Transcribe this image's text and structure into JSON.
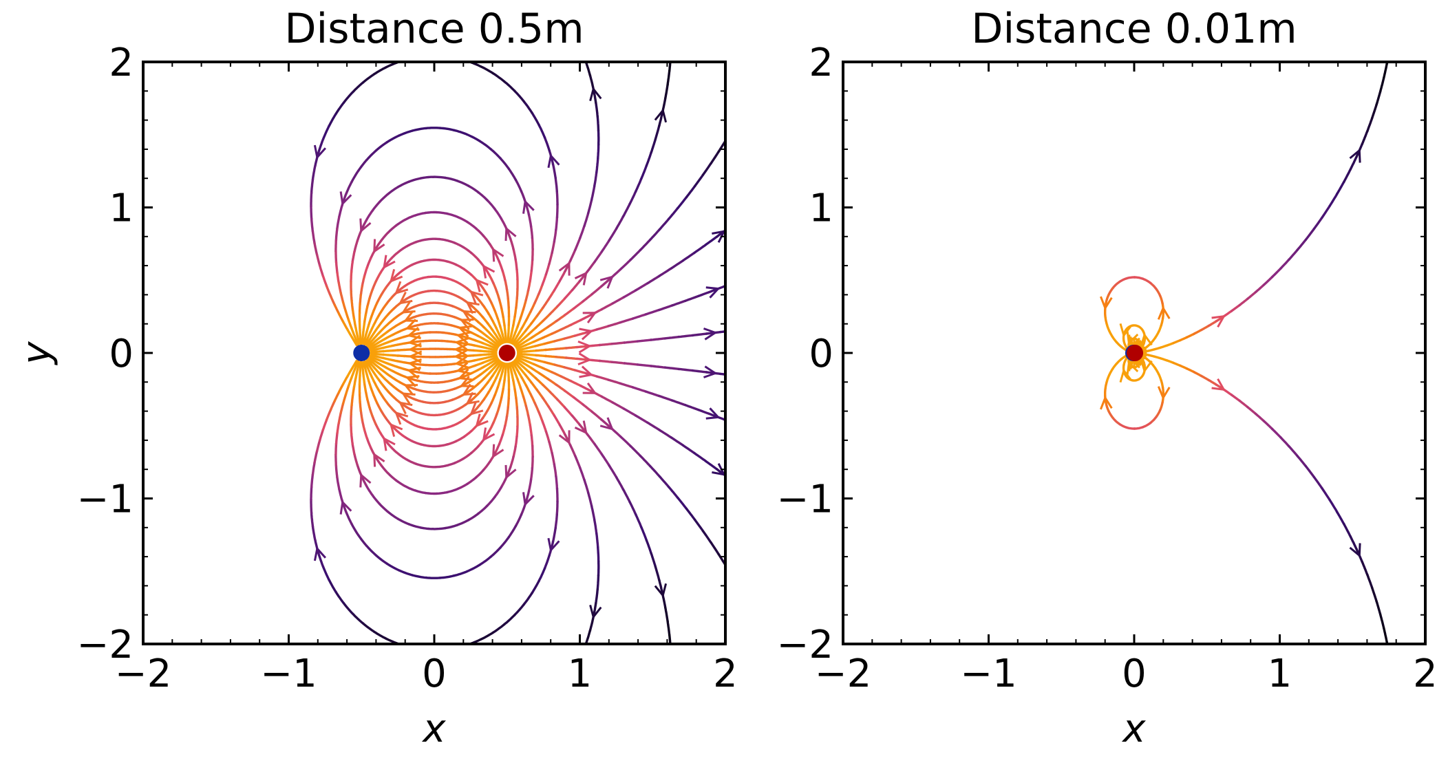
{
  "chart_data": [
    {
      "type": "streamplot",
      "title": "Distance 0.5m",
      "xlabel": "x",
      "ylabel": "y",
      "xlim": [
        -2,
        2
      ],
      "ylim": [
        -2,
        2
      ],
      "xticks": [
        -2,
        -1,
        0,
        1,
        2
      ],
      "yticks": [
        -2,
        -1,
        0,
        1,
        2
      ],
      "xtick_labels": [
        "−2",
        "−1",
        "0",
        "1",
        "2"
      ],
      "ytick_labels": [
        "−2",
        "−1",
        "0",
        "1",
        "2"
      ],
      "colormap": "inferno",
      "line_color_min": "#000004",
      "line_color_max": "#f8a00a",
      "charges": [
        {
          "sign": "negative",
          "x": -0.5,
          "y": 0,
          "color": "#0d2ea6"
        },
        {
          "sign": "positive",
          "x": 0.5,
          "y": 0,
          "color": "#b00000"
        }
      ]
    },
    {
      "type": "streamplot",
      "title": "Distance 0.01m",
      "xlabel": "x",
      "ylabel": "",
      "xlim": [
        -2,
        2
      ],
      "ylim": [
        -2,
        2
      ],
      "xticks": [
        -2,
        -1,
        0,
        1,
        2
      ],
      "yticks": [
        -2,
        -1,
        0,
        1,
        2
      ],
      "xtick_labels": [
        "−2",
        "−1",
        "0",
        "1",
        "2"
      ],
      "ytick_labels": [
        "−2",
        "−1",
        "0",
        "1",
        "2"
      ],
      "colormap": "inferno",
      "line_color_min": "#000004",
      "line_color_max": "#f8a00a",
      "charges": [
        {
          "sign": "negative",
          "x": -0.005,
          "y": 0,
          "color": "#0d2ea6"
        },
        {
          "sign": "positive",
          "x": 0.005,
          "y": 0,
          "color": "#b00000"
        }
      ]
    }
  ]
}
